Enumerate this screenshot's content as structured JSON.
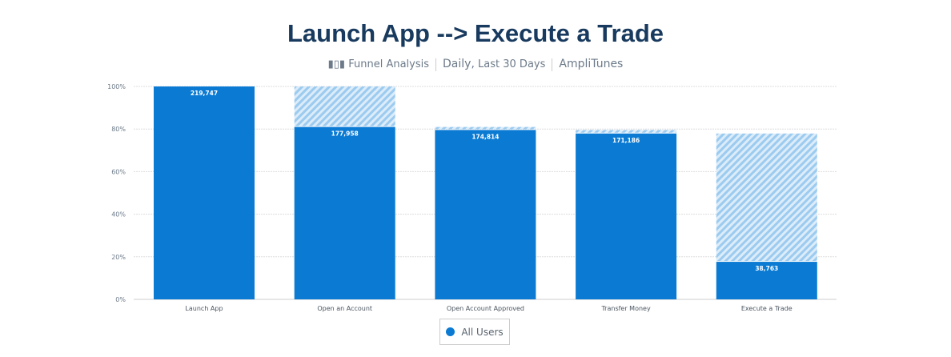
{
  "chart_data": {
    "type": "bar",
    "title": "Launch App --> Execute a Trade",
    "subtitle": {
      "analysis": "Funnel Analysis",
      "period_main": "Daily,",
      "period_detail": "Last 30 Days",
      "project": "AmpliTunes"
    },
    "categories": [
      "Launch App",
      "Open an Account",
      "Open Account Approved",
      "Transfer Money",
      "Execute a Trade"
    ],
    "series": [
      {
        "name": "All Users",
        "counts": [
          "219,747",
          "177,958",
          "174,814",
          "171,186",
          "38,763"
        ],
        "values": [
          100,
          80.98,
          79.55,
          77.9,
          17.64
        ]
      }
    ],
    "previous_step_values": [
      null,
      100,
      80.98,
      79.55,
      77.9
    ],
    "ylim": [
      0,
      100
    ],
    "yticks": [
      "0%",
      "20%",
      "40%",
      "60%",
      "80%",
      "100%"
    ],
    "grid": true,
    "legend": "bottom-center",
    "colors": {
      "bar": "#0a7ad3",
      "dropoff_hatch": "#a9d3f3",
      "title": "#183a5e"
    }
  }
}
